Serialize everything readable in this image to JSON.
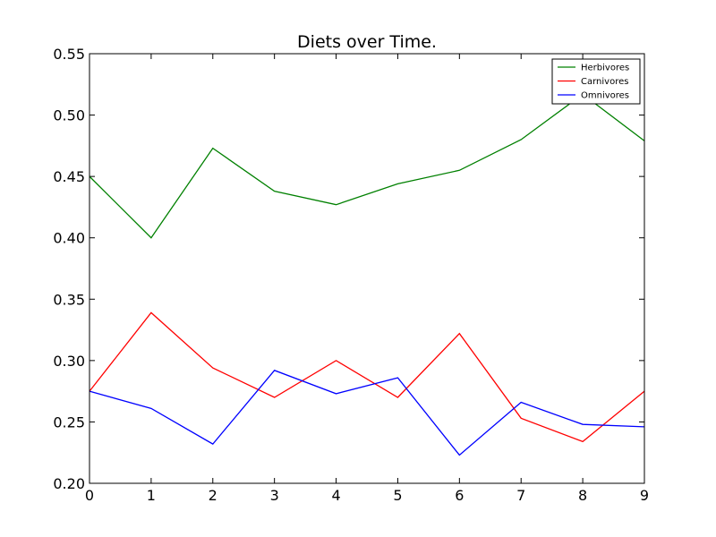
{
  "chart_data": {
    "type": "line",
    "title": "Diets over Time.",
    "xlabel": "",
    "ylabel": "",
    "x": [
      0,
      1,
      2,
      3,
      4,
      5,
      6,
      7,
      8,
      9
    ],
    "xlim": [
      0,
      9
    ],
    "ylim": [
      0.2,
      0.55
    ],
    "xticks": [
      "0",
      "1",
      "2",
      "3",
      "4",
      "5",
      "6",
      "7",
      "8",
      "9"
    ],
    "yticks": [
      "0.20",
      "0.25",
      "0.30",
      "0.35",
      "0.40",
      "0.45",
      "0.50",
      "0.55"
    ],
    "grid": false,
    "legend_position": "top-right",
    "series": [
      {
        "name": "Herbivores",
        "color": "#008000",
        "values": [
          0.45,
          0.4,
          0.473,
          0.438,
          0.427,
          0.444,
          0.455,
          0.48,
          0.517,
          0.479
        ]
      },
      {
        "name": "Carnivores",
        "color": "#ff0000",
        "values": [
          0.275,
          0.339,
          0.294,
          0.27,
          0.3,
          0.27,
          0.322,
          0.253,
          0.234,
          0.275
        ]
      },
      {
        "name": "Omnivores",
        "color": "#0000ff",
        "values": [
          0.275,
          0.261,
          0.232,
          0.292,
          0.273,
          0.286,
          0.223,
          0.266,
          0.248,
          0.246
        ]
      }
    ]
  }
}
